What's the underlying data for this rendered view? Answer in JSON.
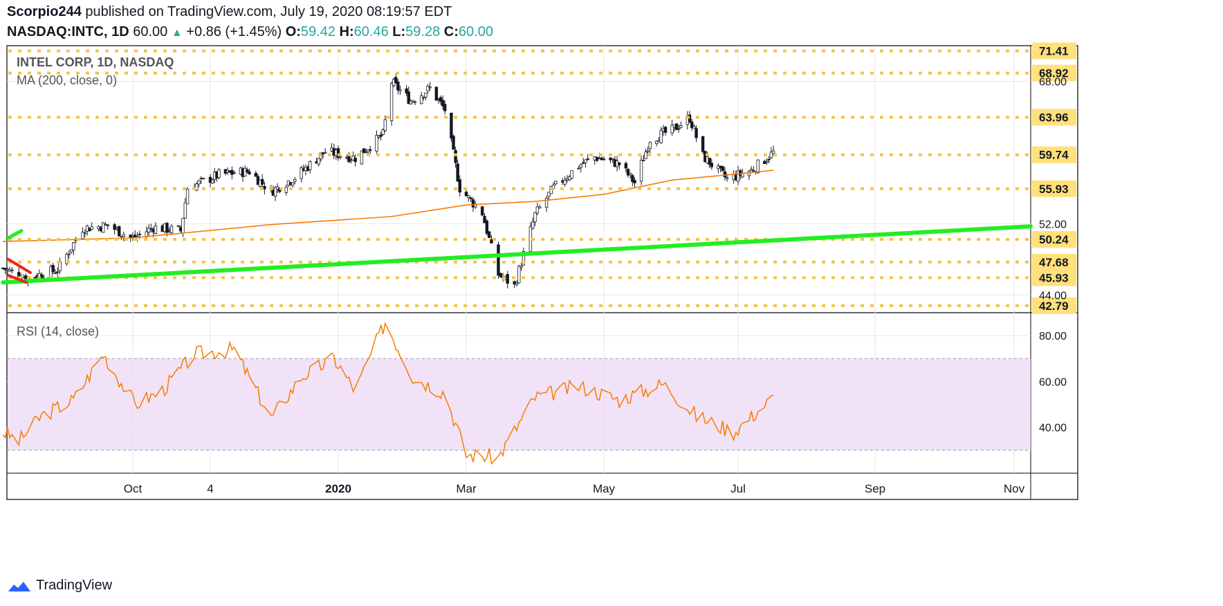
{
  "header": {
    "author": "Scorpio244",
    "published_text": "published on TradingView.com, July 19, 2020 08:19:57 EDT",
    "symbol": "NASDAQ:INTC, 1D",
    "last": "60.00",
    "change": "+0.86 (+1.45%)",
    "open_label": "O:",
    "open": "59.42",
    "high_label": "H:",
    "high": "60.46",
    "low_label": "L:",
    "low": "59.28",
    "close_label": "C:",
    "close": "60.00"
  },
  "footer": {
    "brand": "TradingView"
  },
  "colors": {
    "candle_up": "#26a69a",
    "candle_down": "#ef5350",
    "candle_body": "#131722",
    "ma": "#f57c00",
    "level": "#f5c342",
    "trend": "#22ee22",
    "rsi": "#f57c00",
    "rsi_band": "#ecd6f5",
    "accent": "#2962ff"
  },
  "chart_data": [
    {
      "type": "candlestick",
      "title": "INTEL CORP, 1D, NASDAQ",
      "indicator": "MA (200, close, 0)",
      "ylim": [
        42.0,
        72.0
      ],
      "y_ticks": [
        "44.00",
        "52.00",
        "68.00"
      ],
      "x_ticks": [
        "Oct",
        "4",
        "2020",
        "Mar",
        "May",
        "Jul",
        "Sep",
        "Nov"
      ],
      "horizontal_levels": [
        71.41,
        68.92,
        63.96,
        59.74,
        55.93,
        50.24,
        47.68,
        45.93,
        42.79
      ],
      "level_labels": [
        "71.41",
        "68.92",
        "63.96",
        "59.74",
        "55.93",
        "50.24",
        "47.68",
        "45.93",
        "42.79"
      ],
      "close_series": [
        {
          "date": "2019-08-05",
          "close": 47.0
        },
        {
          "date": "2019-08-15",
          "close": 45.9
        },
        {
          "date": "2019-08-29",
          "close": 46.8
        },
        {
          "date": "2019-09-09",
          "close": 51.5
        },
        {
          "date": "2019-09-20",
          "close": 51.8
        },
        {
          "date": "2019-10-01",
          "close": 50.3
        },
        {
          "date": "2019-10-10",
          "close": 51.6
        },
        {
          "date": "2019-10-22",
          "close": 51.2
        },
        {
          "date": "2019-10-25",
          "close": 56.0
        },
        {
          "date": "2019-11-08",
          "close": 57.5
        },
        {
          "date": "2019-11-22",
          "close": 57.9
        },
        {
          "date": "2019-12-02",
          "close": 55.6
        },
        {
          "date": "2019-12-13",
          "close": 57.2
        },
        {
          "date": "2019-12-27",
          "close": 60.1
        },
        {
          "date": "2020-01-10",
          "close": 59.4
        },
        {
          "date": "2020-01-23",
          "close": 62.0
        },
        {
          "date": "2020-01-27",
          "close": 67.9
        },
        {
          "date": "2020-02-05",
          "close": 65.8
        },
        {
          "date": "2020-02-14",
          "close": 67.2
        },
        {
          "date": "2020-02-21",
          "close": 64.8
        },
        {
          "date": "2020-02-28",
          "close": 56.0
        },
        {
          "date": "2020-03-09",
          "close": 53.2
        },
        {
          "date": "2020-03-16",
          "close": 46.3
        },
        {
          "date": "2020-03-23",
          "close": 45.0
        },
        {
          "date": "2020-04-01",
          "close": 53.0
        },
        {
          "date": "2020-04-09",
          "close": 56.0
        },
        {
          "date": "2020-04-20",
          "close": 58.5
        },
        {
          "date": "2020-04-27",
          "close": 59.5
        },
        {
          "date": "2020-05-08",
          "close": 58.7
        },
        {
          "date": "2020-05-15",
          "close": 56.6
        },
        {
          "date": "2020-05-22",
          "close": 61.5
        },
        {
          "date": "2020-06-01",
          "close": 62.5
        },
        {
          "date": "2020-06-09",
          "close": 63.9
        },
        {
          "date": "2020-06-15",
          "close": 59.6
        },
        {
          "date": "2020-06-26",
          "close": 57.0
        },
        {
          "date": "2020-07-07",
          "close": 58.0
        },
        {
          "date": "2020-07-17",
          "close": 60.0
        }
      ],
      "ma200": [
        {
          "date": "2019-08-05",
          "close": 50.0
        },
        {
          "date": "2019-10-01",
          "close": 50.4
        },
        {
          "date": "2019-12-02",
          "close": 51.9
        },
        {
          "date": "2020-01-27",
          "close": 52.8
        },
        {
          "date": "2020-03-02",
          "close": 54.1
        },
        {
          "date": "2020-04-01",
          "close": 54.5
        },
        {
          "date": "2020-05-01",
          "close": 55.3
        },
        {
          "date": "2020-06-01",
          "close": 56.9
        },
        {
          "date": "2020-07-01",
          "close": 57.6
        },
        {
          "date": "2020-07-17",
          "close": 58.0
        }
      ],
      "trendline": {
        "from": {
          "date": "2019-08-05",
          "close": 45.4
        },
        "to": {
          "date": "2020-12-07",
          "close": 51.7
        }
      }
    },
    {
      "type": "line",
      "title": "RSI (14, close)",
      "ylim": [
        20,
        90
      ],
      "y_ticks": [
        "40.00",
        "60.00",
        "80.00"
      ],
      "band": [
        30,
        70
      ],
      "values": [
        {
          "date": "2019-08-05",
          "rsi": 38
        },
        {
          "date": "2019-08-12",
          "rsi": 34
        },
        {
          "date": "2019-08-22",
          "rsi": 45
        },
        {
          "date": "2019-09-05",
          "rsi": 52
        },
        {
          "date": "2019-09-18",
          "rsi": 72
        },
        {
          "date": "2019-10-02",
          "rsi": 50
        },
        {
          "date": "2019-10-14",
          "rsi": 56
        },
        {
          "date": "2019-10-28",
          "rsi": 72
        },
        {
          "date": "2019-11-15",
          "rsi": 74
        },
        {
          "date": "2019-12-02",
          "rsi": 44
        },
        {
          "date": "2019-12-16",
          "rsi": 62
        },
        {
          "date": "2019-12-31",
          "rsi": 70
        },
        {
          "date": "2020-01-10",
          "rsi": 56
        },
        {
          "date": "2020-01-24",
          "rsi": 86
        },
        {
          "date": "2020-02-06",
          "rsi": 62
        },
        {
          "date": "2020-02-21",
          "rsi": 55
        },
        {
          "date": "2020-03-02",
          "rsi": 28
        },
        {
          "date": "2020-03-16",
          "rsi": 27
        },
        {
          "date": "2020-04-01",
          "rsi": 53
        },
        {
          "date": "2020-04-20",
          "rsi": 58
        },
        {
          "date": "2020-05-08",
          "rsi": 52
        },
        {
          "date": "2020-05-28",
          "rsi": 59
        },
        {
          "date": "2020-06-12",
          "rsi": 45
        },
        {
          "date": "2020-06-29",
          "rsi": 38
        },
        {
          "date": "2020-07-17",
          "rsi": 53
        }
      ]
    }
  ]
}
